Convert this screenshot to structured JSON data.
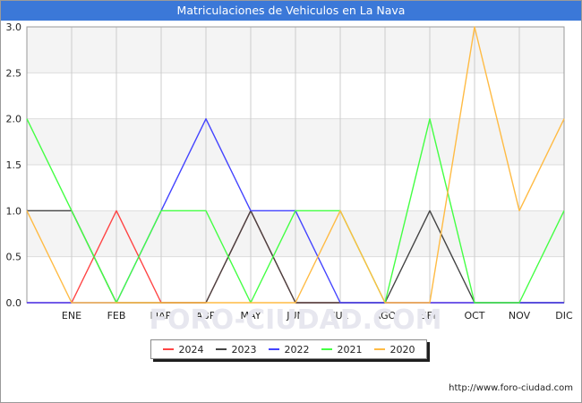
{
  "title": "Matriculaciones de Vehiculos en La Nava",
  "watermark": "FORO-CIUDAD.COM",
  "source": "http://www.foro-ciudad.com",
  "chart_data": {
    "type": "line",
    "title": "Matriculaciones de Vehiculos en La Nava",
    "categories": [
      "",
      "ENE",
      "FEB",
      "MAR",
      "ABR",
      "MAY",
      "JUN",
      "JUL",
      "AGO",
      "SEP",
      "OCT",
      "NOV",
      "DIC"
    ],
    "ylim": [
      0,
      3.0
    ],
    "yticks": [
      "0.0",
      "0.5",
      "1.0",
      "1.5",
      "2.0",
      "2.5",
      "3.0"
    ],
    "grid": true,
    "legend_position": "bottom",
    "series": [
      {
        "name": "2024",
        "color": "#ff4444",
        "values": [
          0,
          0,
          1,
          0,
          0,
          1,
          0,
          0,
          0,
          0,
          0,
          0,
          0
        ]
      },
      {
        "name": "2023",
        "color": "#444444",
        "values": [
          1,
          1,
          0,
          0,
          0,
          1,
          0,
          0,
          0,
          1,
          0,
          0,
          0
        ]
      },
      {
        "name": "2022",
        "color": "#4444ff",
        "values": [
          0,
          0,
          0,
          1,
          2,
          1,
          1,
          0,
          0,
          0,
          0,
          0,
          0
        ]
      },
      {
        "name": "2021",
        "color": "#44ff44",
        "values": [
          2,
          1,
          0,
          1,
          1,
          0,
          1,
          1,
          0,
          2,
          0,
          0,
          1
        ]
      },
      {
        "name": "2020",
        "color": "#ffbb44",
        "values": [
          1,
          0,
          0,
          0,
          0,
          0,
          0,
          1,
          0,
          0,
          3,
          1,
          2
        ]
      }
    ]
  }
}
